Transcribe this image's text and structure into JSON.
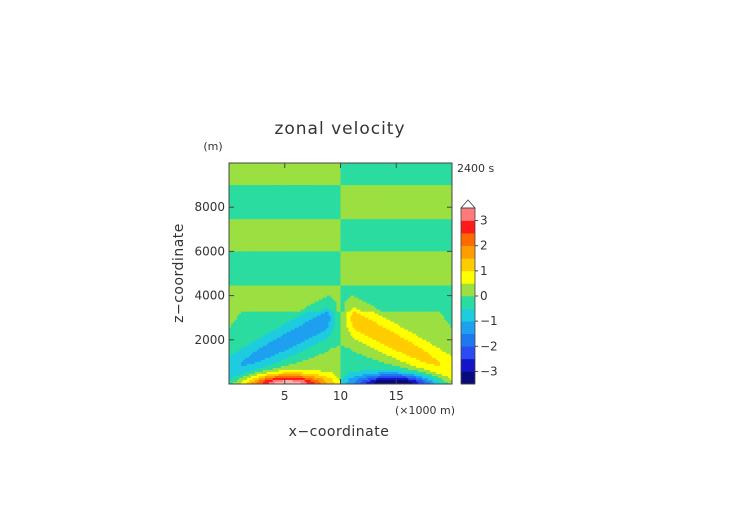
{
  "chart_data": {
    "type": "heatmap",
    "title": "zonal velocity",
    "xlabel": "x−coordinate",
    "ylabel": "z−coordinate",
    "x_unit": "(×1000 m)",
    "y_unit": "(m)",
    "time_label": "2400 s",
    "xlim": [
      0,
      20
    ],
    "ylim": [
      0,
      10000
    ],
    "x_ticks": [
      5,
      10,
      15
    ],
    "x_tick_labels": [
      "5",
      "10",
      "15"
    ],
    "y_ticks": [
      2000,
      4000,
      6000,
      8000
    ],
    "y_tick_labels": [
      "2000",
      "4000",
      "6000",
      "8000"
    ],
    "colorbar": {
      "levels": [
        -3.5,
        -3,
        -2.5,
        -2,
        -1.5,
        -1,
        -0.5,
        0,
        0.5,
        1,
        1.5,
        2,
        2.5,
        3,
        3.5
      ],
      "colors": [
        "#0a0a7a",
        "#1414c8",
        "#2a4cf0",
        "#1e78f0",
        "#1ea0f0",
        "#1ecce0",
        "#2adca0",
        "#9be040",
        "#ffff00",
        "#ffcc00",
        "#ff9d00",
        "#ff6a00",
        "#ff1a1a",
        "#ff7a7a",
        "#ffb0b0"
      ],
      "tick_values": [
        -3,
        -2,
        -1,
        0,
        1,
        2,
        3
      ],
      "tick_labels": [
        "−3",
        "−2",
        "−1",
        "0",
        "1",
        "2",
        "3"
      ],
      "extend": "both"
    },
    "grid": false,
    "legend": "colorbar-right",
    "field_description_note": null
  }
}
